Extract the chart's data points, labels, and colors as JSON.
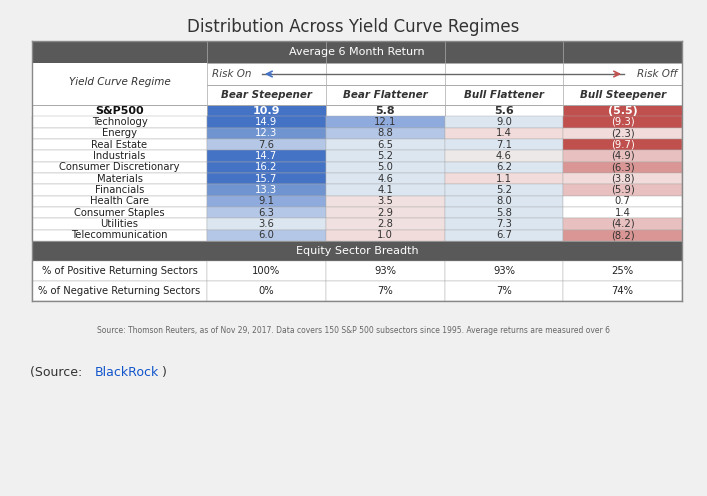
{
  "title": "Distribution Across Yield Curve Regimes",
  "header_row1": "Average 6 Month Return",
  "risk_on": "Risk On",
  "risk_off": "Risk Off",
  "col_headers": [
    "Bear Steepener",
    "Bear Flattener",
    "Bull Flattener",
    "Bull Steepener"
  ],
  "row_label_header": "Yield Curve Regime",
  "rows": [
    [
      "S&P500",
      "10.9",
      "5.8",
      "5.6",
      "(5.5)"
    ],
    [
      "Technology",
      "14.9",
      "12.1",
      "9.0",
      "(9.3)"
    ],
    [
      "Energy",
      "12.3",
      "8.8",
      "1.4",
      "(2.3)"
    ],
    [
      "Real Estate",
      "7.6",
      "6.5",
      "7.1",
      "(9.7)"
    ],
    [
      "Industrials",
      "14.7",
      "5.2",
      "4.6",
      "(4.9)"
    ],
    [
      "Consumer Discretionary",
      "16.2",
      "5.0",
      "6.2",
      "(6.3)"
    ],
    [
      "Materials",
      "15.7",
      "4.6",
      "1.1",
      "(3.8)"
    ],
    [
      "Financials",
      "13.3",
      "4.1",
      "5.2",
      "(5.9)"
    ],
    [
      "Health Care",
      "9.1",
      "3.5",
      "8.0",
      "0.7"
    ],
    [
      "Consumer Staples",
      "6.3",
      "2.9",
      "5.8",
      "1.4"
    ],
    [
      "Utilities",
      "3.6",
      "2.8",
      "7.3",
      "(4.2)"
    ],
    [
      "Telecommunication",
      "6.0",
      "1.0",
      "6.7",
      "(8.2)"
    ]
  ],
  "breadth_header": "Equity Sector Breadth",
  "breadth_rows": [
    [
      "% of Positive Returning Sectors",
      "100%",
      "93%",
      "93%",
      "25%"
    ],
    [
      "% of Negative Returning Sectors",
      "0%",
      "7%",
      "7%",
      "74%"
    ]
  ],
  "source_text": "Source: Thomson Reuters, as of Nov 29, 2017. Data covers 150 S&P 500 subsectors since 1995. Average returns are measured over 6",
  "source_color": "#1155CC",
  "bg_color": "#f0f0f0",
  "header_dark_bg": "#595959",
  "table_bg": "#ffffff"
}
